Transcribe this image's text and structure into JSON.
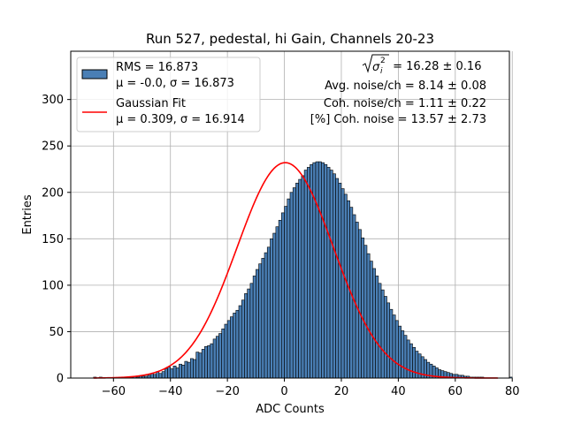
{
  "chart_data": {
    "type": "bar",
    "title": "Run 527, pedestal, hi Gain, Channels 20-23",
    "xlabel": "ADC Counts",
    "ylabel": "Entries",
    "xlim": [
      -75,
      79
    ],
    "ylim": [
      0,
      352
    ],
    "xticks": [
      -60,
      -40,
      -20,
      0,
      20,
      40,
      60,
      80
    ],
    "yticks": [
      0,
      50,
      100,
      150,
      200,
      250,
      300
    ],
    "grid": true,
    "legend_position": "top-left",
    "colors": {
      "bar_fill": "#4a7fb5",
      "bar_edge": "#000000",
      "fit_line": "#ff0000",
      "grid": "#b0b0b0"
    },
    "histogram": {
      "name": "RMS = 16.873",
      "label_line2": "μ = -0.0, σ = 16.873",
      "bin_width": 1,
      "bin_start": -67,
      "counts": [
        1,
        0,
        1,
        0,
        0,
        0,
        0,
        0,
        0,
        0,
        0,
        1,
        1,
        1,
        2,
        1,
        2,
        2,
        2,
        3,
        5,
        4,
        7,
        5,
        7,
        10,
        12,
        10,
        13,
        11,
        15,
        14,
        18,
        17,
        21,
        20,
        28,
        27,
        31,
        34,
        35,
        37,
        42,
        45,
        48,
        53,
        58,
        62,
        66,
        70,
        73,
        78,
        84,
        91,
        96,
        102,
        110,
        117,
        123,
        129,
        135,
        141,
        150,
        156,
        163,
        170,
        178,
        185,
        193,
        200,
        205,
        210,
        214,
        218,
        224,
        227,
        230,
        232,
        233,
        233,
        232,
        230,
        227,
        224,
        220,
        215,
        210,
        204,
        198,
        191,
        184,
        176,
        168,
        160,
        151,
        143,
        134,
        126,
        118,
        110,
        102,
        95,
        88,
        81,
        74,
        68,
        62,
        56,
        51,
        46,
        41,
        37,
        33,
        29,
        26,
        23,
        20,
        17,
        15,
        13,
        11,
        9,
        8,
        7,
        6,
        5,
        4,
        4,
        3,
        3,
        2,
        2,
        1,
        1,
        1,
        1,
        1,
        0,
        0,
        0,
        0,
        0,
        0,
        0,
        0,
        0,
        1
      ]
    },
    "fit": {
      "name": "Gaussian Fit",
      "label_line2": "μ = 0.309, σ = 16.914",
      "mu": 0.309,
      "sigma": 16.914,
      "amplitude": 232,
      "x_range": [
        -67,
        75
      ]
    },
    "annotations": {
      "line1_suffix": " = 16.28 ± 0.16",
      "line2": "Avg. noise/ch = 8.14 ± 0.08",
      "line3": "Coh. noise/ch = 1.11 ± 0.22",
      "line4": "[%] Coh. noise = 13.57 ± 2.73"
    },
    "legend": {
      "hist_line1": "RMS = 16.873",
      "hist_line2": "μ = -0.0, σ = 16.873",
      "fit_line1": "Gaussian Fit",
      "fit_line2": "μ = 0.309, σ = 16.914"
    }
  }
}
